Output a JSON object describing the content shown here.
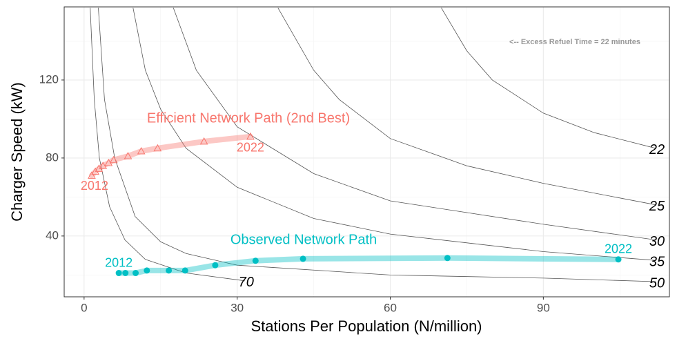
{
  "chart_data": {
    "type": "line",
    "x_label": "Stations Per Population (N/million)",
    "y_label": "Charger Speed (kW)",
    "annotation": "<-- Excess Refuel Time = 22 minutes",
    "xlim": [
      -3.9,
      114.7
    ],
    "ylim": [
      8.8,
      157.5
    ],
    "xticks": [
      0,
      30,
      60,
      90
    ],
    "yticks": [
      40,
      80,
      120
    ],
    "x_minor_ticks": [
      15,
      45,
      75,
      105
    ],
    "y_minor_ticks": [
      20,
      60,
      100,
      140
    ],
    "grid": true,
    "contours": [
      {
        "name": "22",
        "color": "#555555",
        "x": [
          70,
          75,
          80,
          90,
          100,
          112
        ],
        "y": [
          157,
          135,
          120,
          103,
          93,
          85
        ]
      },
      {
        "name": "25",
        "color": "#555555",
        "x": [
          38,
          45,
          50,
          60,
          75,
          90,
          112
        ],
        "y": [
          157,
          125,
          110,
          90,
          76,
          67,
          56
        ]
      },
      {
        "name": "30",
        "color": "#555555",
        "x": [
          17.5,
          22,
          30,
          45,
          60,
          90,
          112
        ],
        "y": [
          157,
          125,
          96,
          72,
          58,
          46,
          38
        ]
      },
      {
        "name": "35",
        "color": "#555555",
        "x": [
          9.6,
          12,
          15,
          20,
          30,
          45,
          60,
          90,
          112
        ],
        "y": [
          157,
          125,
          105,
          85,
          65,
          49,
          41,
          32,
          27.5
        ]
      },
      {
        "name": "50",
        "color": "#555555",
        "x": [
          2.8,
          4,
          6,
          10,
          15,
          20,
          30,
          60,
          90,
          112
        ],
        "y": [
          157,
          110,
          80,
          50,
          37,
          31,
          25,
          20,
          18.4,
          16.6
        ]
      },
      {
        "name": "70",
        "color": "#555555",
        "x": [
          1.2,
          2,
          3,
          5,
          8,
          12,
          20,
          31.5
        ],
        "y": [
          157,
          110,
          80,
          55,
          38,
          28,
          21,
          17
        ]
      }
    ],
    "series": [
      {
        "name": "Efficient Network Path (2nd Best)",
        "color": "#F8766D",
        "marker": "triangle",
        "start_label": "2012",
        "end_label": "2022",
        "x": [
          1.5,
          2.2,
          2.9,
          3.7,
          4.8,
          5.8,
          8.6,
          11.2,
          14.4,
          23.5,
          32.6
        ],
        "values": [
          71,
          73,
          74.5,
          76,
          77.5,
          79,
          81,
          83.5,
          85,
          88.5,
          91
        ]
      },
      {
        "name": "Observed Network Path",
        "color": "#00BFC4",
        "marker": "circle",
        "start_label": "2012",
        "end_label": "2022",
        "x": [
          6.8,
          8.1,
          10.1,
          12.3,
          16.6,
          19.8,
          25.7,
          33.6,
          42.9,
          71.2,
          104.7
        ],
        "values": [
          21,
          21,
          21,
          22.3,
          22.3,
          22.3,
          25,
          27.3,
          28.3,
          28.7,
          28
        ]
      }
    ]
  }
}
